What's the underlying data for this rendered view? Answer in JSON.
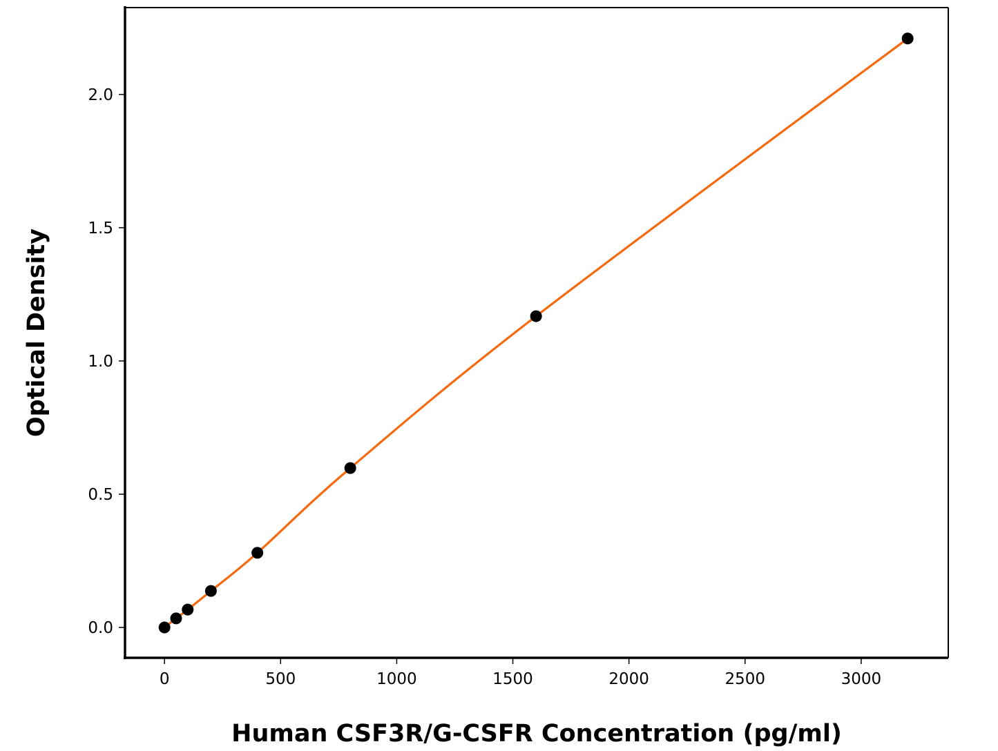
{
  "chart_data": {
    "type": "scatter",
    "title": "",
    "xlabel": "Human CSF3R/G-CSFR Concentration (pg/ml)",
    "ylabel": "Optical Density",
    "xlim": [
      -170,
      3375
    ],
    "ylim": [
      -0.114,
      2.326
    ],
    "xticks": [
      0,
      500,
      1000,
      1500,
      2000,
      2500,
      3000
    ],
    "xtick_labels": [
      "0",
      "500",
      "1000",
      "1500",
      "2000",
      "2500",
      "3000"
    ],
    "yticks": [
      0,
      0.5,
      1,
      1.5,
      2
    ],
    "ytick_labels": [
      "0.0",
      "0.5",
      "1.0",
      "1.5",
      "2.0"
    ],
    "grid": false,
    "series": [
      {
        "x": [
          0,
          50,
          100,
          200,
          400,
          800,
          1600,
          3200
        ],
        "y": [
          0.0,
          0.034,
          0.067,
          0.137,
          0.28,
          0.598,
          1.168,
          2.21
        ],
        "marker_color": "#000000",
        "line_color": "#f5690f",
        "fit_line": true
      }
    ]
  }
}
